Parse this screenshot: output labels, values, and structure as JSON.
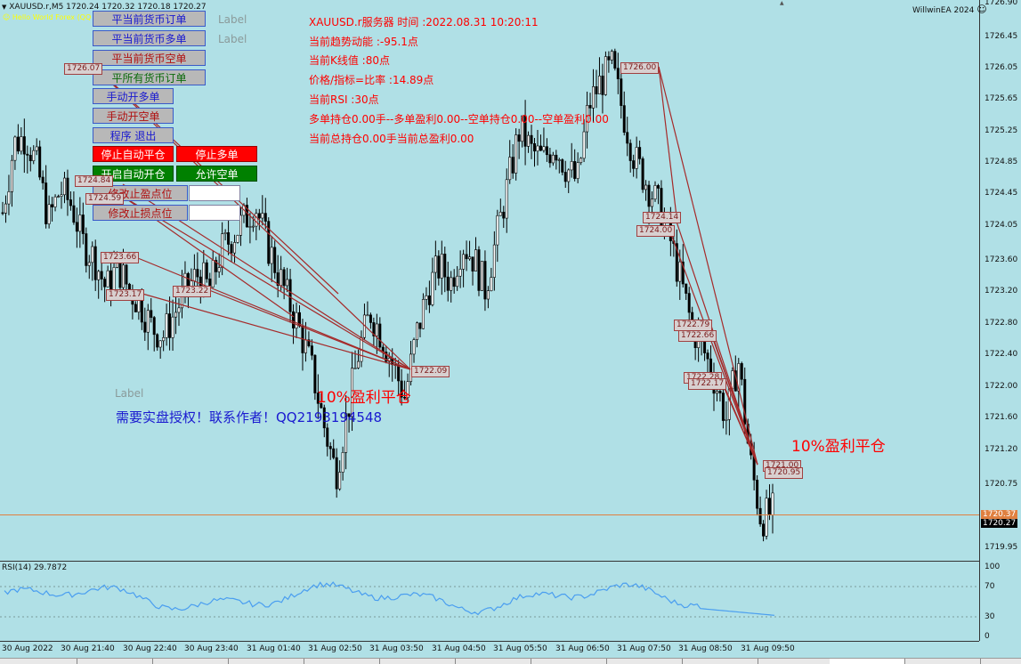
{
  "header": {
    "symbol_line": "XAUUSD.r,M5  1720.24 1720.32 1720.18 1720.27",
    "ea_line": "Hello World Forex (QQ 2193194548)",
    "brand": "WillwinEA 2024",
    "smiley": "☺"
  },
  "labels": {
    "label1": "Label",
    "label2": "Label",
    "label3": "Label"
  },
  "buttons": {
    "close_all_orders": "平当前货币订单",
    "close_buy": "平当前货币多单",
    "close_sell": "平当前货币空单",
    "close_all_currency": "平所有货币订单",
    "manual_buy": "手动开多单",
    "manual_sell": "手动开空单",
    "program_exit": "程序 退出",
    "stop_auto_close": "停止自动平仓",
    "stop_buy": "停止多单",
    "start_auto_open": "开启自动开仓",
    "allow_sell": "允许空单",
    "modify_tp": "修改止盈点位",
    "modify_sl": "修改止损点位"
  },
  "info": {
    "line1": "XAUUSD.r服务器   时间 :2022.08.31 10:20:11",
    "line2": "当前趋势动能 :-95.1点",
    "line3": "当前K线值 :80点",
    "line4": "价格/指标=比率 :14.89点",
    "line5": "当前RSI :30点",
    "line6": "多单持仓0.00手--多单盈利0.00--空单持仓0.00--空单盈利0.00",
    "line7": "当前总持仓0.00手当前总盈利0.00"
  },
  "annotations": {
    "profit_close_1": "10%盈利平仓",
    "profit_close_2": "10%盈利平仓",
    "contact": "需要实盘授权！联系作者！QQ2193194548"
  },
  "price_tags": [
    "1726.07",
    "1724.84",
    "1724.59",
    "1723.66",
    "1723.17",
    "1723.22",
    "1722.09",
    "1726.00",
    "1724.14",
    "1724.00",
    "1722.79",
    "1722.66",
    "1722.28",
    "1722.17",
    "1721.00",
    "1720.95"
  ],
  "rsi": {
    "label": "RSI(14) 29.7872",
    "levels": [
      "100",
      "70",
      "30",
      "0"
    ]
  },
  "colors": {
    "background": "#b0e0e6",
    "bull": "#ffffff",
    "bear": "#000000",
    "trade_line": "#a52a2a",
    "text_red": "#ff0000",
    "text_blue": "#1a1ad0"
  },
  "chart_data": {
    "type": "candlestick",
    "symbol": "XAUUSD.r",
    "timeframe": "M5",
    "ylim": [
      1719.8,
      1726.95
    ],
    "y_ticks": [
      "1726.90",
      "1726.45",
      "1726.05",
      "1725.65",
      "1725.25",
      "1724.85",
      "1724.45",
      "1724.05",
      "1723.60",
      "1723.20",
      "1722.80",
      "1722.40",
      "1722.00",
      "1721.60",
      "1721.20",
      "1720.75",
      "1719.95"
    ],
    "current_prices": [
      "1720.37",
      "1720.27"
    ],
    "x_ticks": [
      "30 Aug 2022",
      "30 Aug 21:40",
      "30 Aug 22:40",
      "30 Aug 23:40",
      "31 Aug 01:40",
      "31 Aug 02:50",
      "31 Aug 03:50",
      "31 Aug 04:50",
      "31 Aug 05:50",
      "31 Aug 06:50",
      "31 Aug 07:50",
      "31 Aug 08:50",
      "31 Aug 09:50"
    ],
    "close_path": [
      1724.2,
      1725.1,
      1725.2,
      1724.8,
      1724.1,
      1724.5,
      1724.3,
      1723.8,
      1723.6,
      1723.2,
      1723.5,
      1723.2,
      1723.0,
      1722.7,
      1722.6,
      1722.9,
      1723.2,
      1723.4,
      1723.2,
      1723.7,
      1723.9,
      1724.1,
      1724.3,
      1723.8,
      1723.4,
      1723.0,
      1722.6,
      1722.1,
      1721.4,
      1720.8,
      1721.6,
      1722.4,
      1722.9,
      1722.6,
      1722.2,
      1721.8,
      1722.6,
      1723.2,
      1723.5,
      1723.3,
      1723.8,
      1723.6,
      1723.2,
      1723.9,
      1724.6,
      1725.3,
      1725.0,
      1724.9,
      1725.1,
      1724.8,
      1724.6,
      1725.6,
      1725.9,
      1726.1,
      1725.5,
      1724.9,
      1724.6,
      1724.3,
      1723.9,
      1723.3,
      1722.7,
      1722.4,
      1722.0,
      1721.5,
      1722.3,
      1721.0,
      1720.2,
      1720.3
    ]
  }
}
